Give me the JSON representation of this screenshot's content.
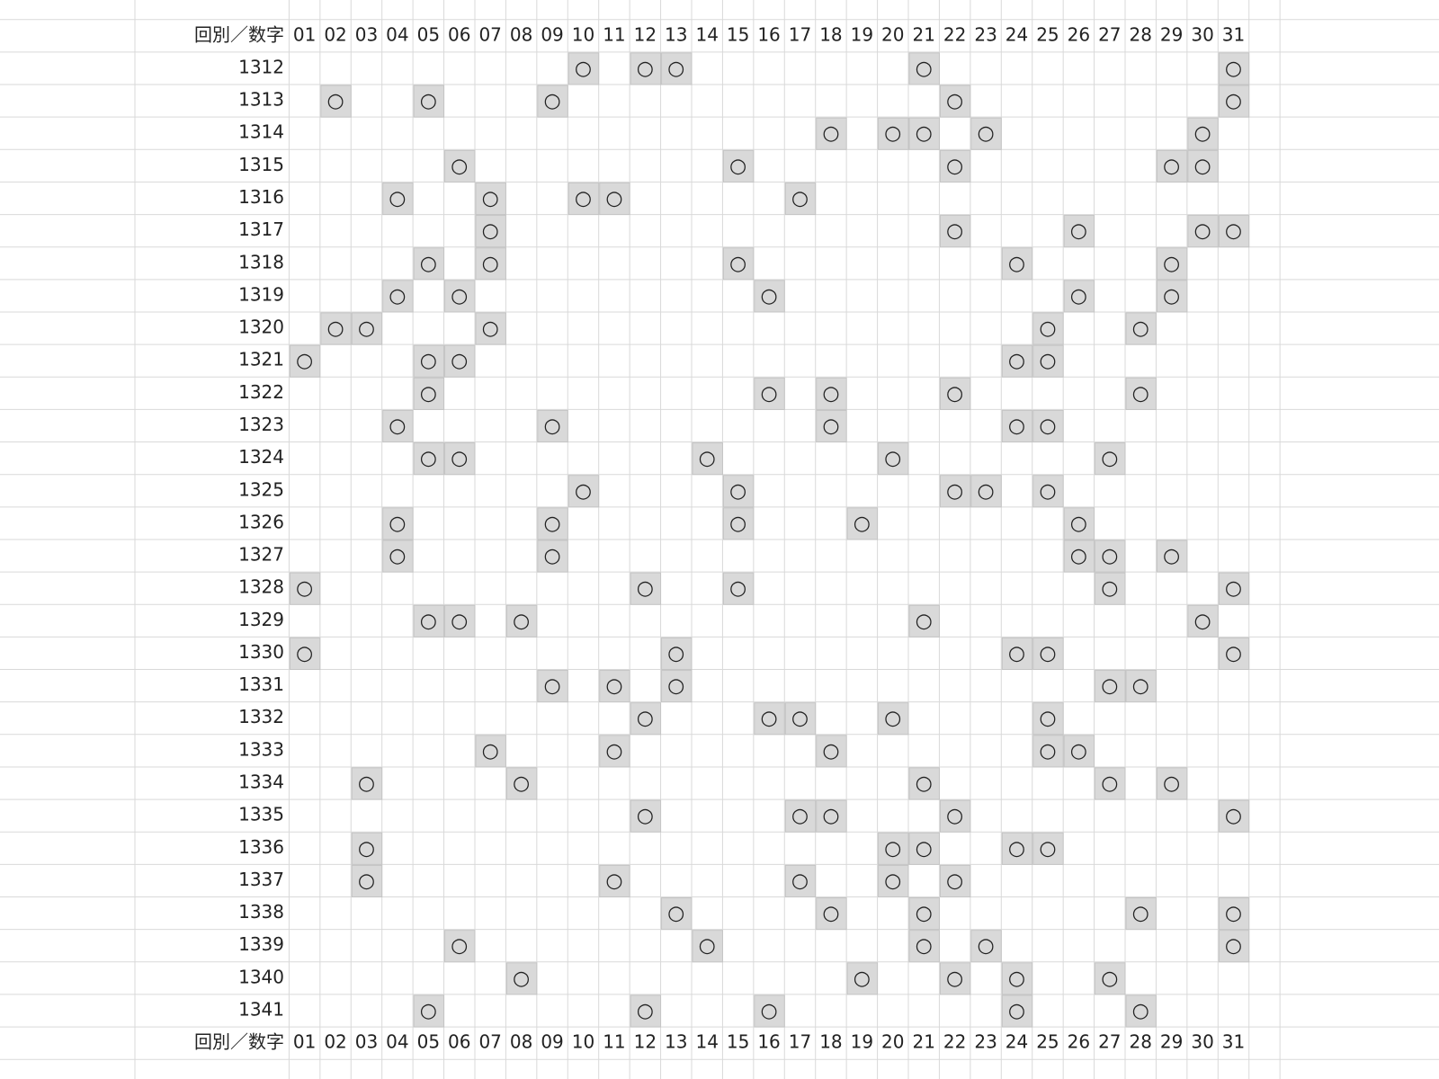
{
  "header": {
    "label": "回別／数字",
    "columns": [
      "01",
      "02",
      "03",
      "04",
      "05",
      "06",
      "07",
      "08",
      "09",
      "10",
      "11",
      "12",
      "13",
      "14",
      "15",
      "16",
      "17",
      "18",
      "19",
      "20",
      "21",
      "22",
      "23",
      "24",
      "25",
      "26",
      "27",
      "28",
      "29",
      "30",
      "31"
    ]
  },
  "table": {
    "rows": [
      {
        "label": "1312",
        "cells": [
          null,
          null,
          null,
          null,
          null,
          null,
          null,
          null,
          null,
          "○",
          null,
          "○",
          "○",
          null,
          null,
          null,
          null,
          null,
          null,
          null,
          "○",
          null,
          null,
          null,
          null,
          null,
          null,
          null,
          null,
          null,
          "○"
        ]
      },
      {
        "label": "1313",
        "cells": [
          null,
          "○",
          null,
          null,
          "○",
          null,
          null,
          null,
          "○",
          null,
          null,
          null,
          null,
          null,
          null,
          null,
          null,
          null,
          null,
          null,
          null,
          "○",
          null,
          null,
          null,
          null,
          null,
          null,
          null,
          null,
          "○"
        ]
      },
      {
        "label": "1314",
        "cells": [
          null,
          null,
          null,
          null,
          null,
          null,
          null,
          null,
          null,
          null,
          null,
          null,
          null,
          null,
          null,
          null,
          null,
          "○",
          null,
          "○",
          "○",
          null,
          "○",
          null,
          null,
          null,
          null,
          null,
          null,
          "○",
          null
        ]
      },
      {
        "label": "1315",
        "cells": [
          null,
          null,
          null,
          null,
          null,
          "○",
          null,
          null,
          null,
          null,
          null,
          null,
          null,
          null,
          "○",
          null,
          null,
          null,
          null,
          null,
          null,
          "○",
          null,
          null,
          null,
          null,
          null,
          null,
          "○",
          "○",
          null
        ]
      },
      {
        "label": "1316",
        "cells": [
          null,
          null,
          null,
          "○",
          null,
          null,
          "○",
          null,
          null,
          "○",
          "○",
          null,
          null,
          null,
          null,
          null,
          "○",
          null,
          null,
          null,
          null,
          null,
          null,
          null,
          null,
          null,
          null,
          null,
          null,
          null,
          null
        ]
      },
      {
        "label": "1317",
        "cells": [
          null,
          null,
          null,
          null,
          null,
          null,
          "○",
          null,
          null,
          null,
          null,
          null,
          null,
          null,
          null,
          null,
          null,
          null,
          null,
          null,
          null,
          "○",
          null,
          null,
          null,
          "○",
          null,
          null,
          null,
          "○",
          "○"
        ]
      },
      {
        "label": "1318",
        "cells": [
          null,
          null,
          null,
          null,
          "○",
          null,
          "○",
          null,
          null,
          null,
          null,
          null,
          null,
          null,
          "○",
          null,
          null,
          null,
          null,
          null,
          null,
          null,
          null,
          "○",
          null,
          null,
          null,
          null,
          "○",
          null,
          null
        ]
      },
      {
        "label": "1319",
        "cells": [
          null,
          null,
          null,
          "○",
          null,
          "○",
          null,
          null,
          null,
          null,
          null,
          null,
          null,
          null,
          null,
          "○",
          null,
          null,
          null,
          null,
          null,
          null,
          null,
          null,
          null,
          "○",
          null,
          null,
          "○",
          null,
          null
        ]
      },
      {
        "label": "1320",
        "cells": [
          null,
          "○",
          "○",
          null,
          null,
          null,
          "○",
          null,
          null,
          null,
          null,
          null,
          null,
          null,
          null,
          null,
          null,
          null,
          null,
          null,
          null,
          null,
          null,
          null,
          "○",
          null,
          null,
          "○",
          null,
          null,
          null
        ]
      },
      {
        "label": "1321",
        "cells": [
          "○",
          null,
          null,
          null,
          "○",
          "○",
          null,
          null,
          null,
          null,
          null,
          null,
          null,
          null,
          null,
          null,
          null,
          null,
          null,
          null,
          null,
          null,
          null,
          "○",
          "○",
          null,
          null,
          null,
          null,
          null,
          null
        ]
      },
      {
        "label": "1322",
        "cells": [
          null,
          null,
          null,
          null,
          "○",
          null,
          null,
          null,
          null,
          null,
          null,
          null,
          null,
          null,
          null,
          "○",
          null,
          "○",
          null,
          null,
          null,
          "○",
          null,
          null,
          null,
          null,
          null,
          "○",
          null,
          null,
          null
        ]
      },
      {
        "label": "1323",
        "cells": [
          null,
          null,
          null,
          "○",
          null,
          null,
          null,
          null,
          "○",
          null,
          null,
          null,
          null,
          null,
          null,
          null,
          null,
          "○",
          null,
          null,
          null,
          null,
          null,
          "○",
          "○",
          null,
          null,
          null,
          null,
          null,
          null
        ]
      },
      {
        "label": "1324",
        "cells": [
          null,
          null,
          null,
          null,
          "○",
          "○",
          null,
          null,
          null,
          null,
          null,
          null,
          null,
          "○",
          null,
          null,
          null,
          null,
          null,
          "○",
          null,
          null,
          null,
          null,
          null,
          null,
          "○",
          null,
          null,
          null,
          null
        ]
      },
      {
        "label": "1325",
        "cells": [
          null,
          null,
          null,
          null,
          null,
          null,
          null,
          null,
          null,
          "○",
          null,
          null,
          null,
          null,
          "○",
          null,
          null,
          null,
          null,
          null,
          null,
          "○",
          "○",
          null,
          "○",
          null,
          null,
          null,
          null,
          null,
          null
        ]
      },
      {
        "label": "1326",
        "cells": [
          null,
          null,
          null,
          "○",
          null,
          null,
          null,
          null,
          "○",
          null,
          null,
          null,
          null,
          null,
          "○",
          null,
          null,
          null,
          "○",
          null,
          null,
          null,
          null,
          null,
          null,
          "○",
          null,
          null,
          null,
          null,
          null
        ]
      },
      {
        "label": "1327",
        "cells": [
          null,
          null,
          null,
          "○",
          null,
          null,
          null,
          null,
          "○",
          null,
          null,
          null,
          null,
          null,
          null,
          null,
          null,
          null,
          null,
          null,
          null,
          null,
          null,
          null,
          null,
          "○",
          "○",
          null,
          "○",
          null,
          null
        ]
      },
      {
        "label": "1328",
        "cells": [
          "○",
          null,
          null,
          null,
          null,
          null,
          null,
          null,
          null,
          null,
          null,
          "○",
          null,
          null,
          "○",
          null,
          null,
          null,
          null,
          null,
          null,
          null,
          null,
          null,
          null,
          null,
          "○",
          null,
          null,
          null,
          "○"
        ]
      },
      {
        "label": "1329",
        "cells": [
          null,
          null,
          null,
          null,
          "○",
          "○",
          null,
          "○",
          null,
          null,
          null,
          null,
          null,
          null,
          null,
          null,
          null,
          null,
          null,
          null,
          "○",
          null,
          null,
          null,
          null,
          null,
          null,
          null,
          null,
          "○",
          null
        ]
      },
      {
        "label": "1330",
        "cells": [
          "○",
          null,
          null,
          null,
          null,
          null,
          null,
          null,
          null,
          null,
          null,
          null,
          "○",
          null,
          null,
          null,
          null,
          null,
          null,
          null,
          null,
          null,
          null,
          "○",
          "○",
          null,
          null,
          null,
          null,
          null,
          "○"
        ]
      },
      {
        "label": "1331",
        "cells": [
          null,
          null,
          null,
          null,
          null,
          null,
          null,
          null,
          "○",
          null,
          "○",
          null,
          "○",
          null,
          null,
          null,
          null,
          null,
          null,
          null,
          null,
          null,
          null,
          null,
          null,
          null,
          "○",
          "○",
          null,
          null,
          null
        ]
      },
      {
        "label": "1332",
        "cells": [
          null,
          null,
          null,
          null,
          null,
          null,
          null,
          null,
          null,
          null,
          null,
          "○",
          null,
          null,
          null,
          "○",
          "○",
          null,
          null,
          "○",
          null,
          null,
          null,
          null,
          "○",
          null,
          null,
          null,
          null,
          null,
          null
        ]
      },
      {
        "label": "1333",
        "cells": [
          null,
          null,
          null,
          null,
          null,
          null,
          "○",
          null,
          null,
          null,
          "○",
          null,
          null,
          null,
          null,
          null,
          null,
          "○",
          null,
          null,
          null,
          null,
          null,
          null,
          "○",
          "○",
          null,
          null,
          null,
          null,
          null
        ]
      },
      {
        "label": "1334",
        "cells": [
          null,
          null,
          "○",
          null,
          null,
          null,
          null,
          "○",
          null,
          null,
          null,
          null,
          null,
          null,
          null,
          null,
          null,
          null,
          null,
          null,
          "○",
          null,
          null,
          null,
          null,
          null,
          "○",
          null,
          "○",
          null,
          null
        ]
      },
      {
        "label": "1335",
        "cells": [
          null,
          null,
          null,
          null,
          null,
          null,
          null,
          null,
          null,
          null,
          null,
          "○",
          null,
          null,
          null,
          null,
          "○",
          "○",
          null,
          null,
          null,
          "○",
          null,
          null,
          null,
          null,
          null,
          null,
          null,
          null,
          "○"
        ]
      },
      {
        "label": "1336",
        "cells": [
          null,
          null,
          "○",
          null,
          null,
          null,
          null,
          null,
          null,
          null,
          null,
          null,
          null,
          null,
          null,
          null,
          null,
          null,
          null,
          "○",
          "○",
          null,
          null,
          "○",
          "○",
          null,
          null,
          null,
          null,
          null,
          null
        ]
      },
      {
        "label": "1337",
        "cells": [
          null,
          null,
          "○",
          null,
          null,
          null,
          null,
          null,
          null,
          null,
          "○",
          null,
          null,
          null,
          null,
          null,
          "○",
          null,
          null,
          "○",
          null,
          "○",
          null,
          null,
          null,
          null,
          null,
          null,
          null,
          null,
          null
        ]
      },
      {
        "label": "1338",
        "cells": [
          null,
          null,
          null,
          null,
          null,
          null,
          null,
          null,
          null,
          null,
          null,
          null,
          "○",
          null,
          null,
          null,
          null,
          "○",
          null,
          null,
          "○",
          null,
          null,
          null,
          null,
          null,
          null,
          "○",
          null,
          null,
          "○"
        ]
      },
      {
        "label": "1339",
        "cells": [
          null,
          null,
          null,
          null,
          null,
          "○",
          null,
          null,
          null,
          null,
          null,
          null,
          null,
          "○",
          null,
          null,
          null,
          null,
          null,
          null,
          "○",
          null,
          "○",
          null,
          null,
          null,
          null,
          null,
          null,
          null,
          "○"
        ]
      },
      {
        "label": "1340",
        "cells": [
          null,
          null,
          null,
          null,
          null,
          null,
          null,
          "○",
          null,
          null,
          null,
          null,
          null,
          null,
          null,
          null,
          null,
          null,
          "○",
          null,
          null,
          "○",
          null,
          "○",
          null,
          null,
          "○",
          null,
          null,
          null,
          null
        ]
      },
      {
        "label": "1341",
        "cells": [
          null,
          null,
          null,
          null,
          "○",
          null,
          null,
          null,
          null,
          null,
          null,
          "○",
          null,
          null,
          null,
          "○",
          null,
          null,
          null,
          null,
          null,
          null,
          null,
          "○",
          null,
          null,
          null,
          "○",
          null,
          null,
          null
        ]
      }
    ]
  },
  "footer": {
    "label": "回別／数字",
    "columns": [
      "01",
      "02",
      "03",
      "04",
      "05",
      "06",
      "07",
      "08",
      "09",
      "10",
      "11",
      "12",
      "13",
      "14",
      "15",
      "16",
      "17",
      "18",
      "19",
      "20",
      "21",
      "22",
      "23",
      "24",
      "25",
      "26",
      "27",
      "28",
      "29",
      "30",
      "31"
    ]
  }
}
